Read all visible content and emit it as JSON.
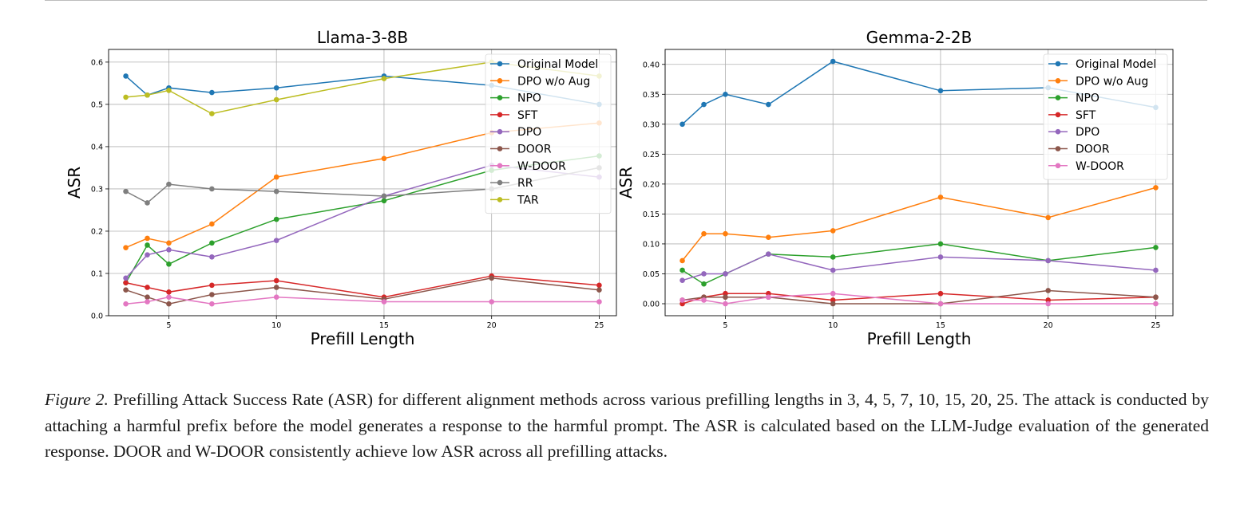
{
  "chart_data": [
    {
      "type": "line",
      "title": "Llama-3-8B",
      "xlabel": "Prefill Length",
      "ylabel": "ASR",
      "x": [
        3,
        4,
        5,
        7,
        10,
        15,
        20,
        25
      ],
      "xticks": [
        5,
        10,
        15,
        20,
        25
      ],
      "xticklabels": [
        "5",
        "10",
        "15",
        "20",
        "25"
      ],
      "xlim": [
        2.2,
        25.8
      ],
      "ylim": [
        0,
        0.63
      ],
      "yticks": [
        0,
        0.1,
        0.2,
        0.3,
        0.4,
        0.5,
        0.6
      ],
      "yticklabels": [
        "0.0",
        "0.1",
        "0.2",
        "0.3",
        "0.4",
        "0.5",
        "0.6"
      ],
      "grid": true,
      "legend": "top-right",
      "series": [
        {
          "name": "Original Model",
          "color": "#1f77b4",
          "values": [
            0.567,
            0.522,
            0.539,
            0.528,
            0.539,
            0.567,
            0.545,
            0.5
          ]
        },
        {
          "name": "DPO w/o Aug",
          "color": "#ff7f0e",
          "values": [
            0.161,
            0.183,
            0.172,
            0.217,
            0.328,
            0.372,
            0.433,
            0.456
          ]
        },
        {
          "name": "NPO",
          "color": "#2ca02c",
          "values": [
            0.078,
            0.167,
            0.122,
            0.172,
            0.228,
            0.272,
            0.344,
            0.378
          ]
        },
        {
          "name": "SFT",
          "color": "#d62728",
          "values": [
            0.078,
            0.067,
            0.056,
            0.072,
            0.083,
            0.044,
            0.094,
            0.072
          ]
        },
        {
          "name": "DPO",
          "color": "#9467bd",
          "values": [
            0.089,
            0.144,
            0.156,
            0.139,
            0.178,
            0.283,
            0.356,
            0.328
          ]
        },
        {
          "name": "DOOR",
          "color": "#8c564b",
          "values": [
            0.061,
            0.044,
            0.028,
            0.05,
            0.067,
            0.039,
            0.089,
            0.061
          ]
        },
        {
          "name": "W-DOOR",
          "color": "#e377c2",
          "values": [
            0.028,
            0.033,
            0.044,
            0.028,
            0.044,
            0.033,
            0.033,
            0.033
          ]
        },
        {
          "name": "RR",
          "color": "#7f7f7f",
          "values": [
            0.294,
            0.267,
            0.311,
            0.3,
            0.294,
            0.283,
            0.3,
            0.35
          ]
        },
        {
          "name": "TAR",
          "color": "#bcbd22",
          "values": [
            0.517,
            0.522,
            0.533,
            0.478,
            0.511,
            0.561,
            0.6,
            0.567
          ]
        }
      ]
    },
    {
      "type": "line",
      "title": "Gemma-2-2B",
      "xlabel": "Prefill Length",
      "ylabel": "ASR",
      "x": [
        3,
        4,
        5,
        7,
        10,
        15,
        20,
        25
      ],
      "xticks": [
        5,
        10,
        15,
        20,
        25
      ],
      "xticklabels": [
        "5",
        "10",
        "15",
        "20",
        "25"
      ],
      "xlim": [
        2.2,
        25.8
      ],
      "ylim": [
        -0.02,
        0.425
      ],
      "yticks": [
        0,
        0.05,
        0.1,
        0.15,
        0.2,
        0.25,
        0.3,
        0.35,
        0.4
      ],
      "yticklabels": [
        "0.00",
        "0.05",
        "0.10",
        "0.15",
        "0.20",
        "0.25",
        "0.30",
        "0.35",
        "0.40"
      ],
      "grid": true,
      "legend": "top-right",
      "series": [
        {
          "name": "Original Model",
          "color": "#1f77b4",
          "values": [
            0.3,
            0.333,
            0.35,
            0.333,
            0.405,
            0.356,
            0.361,
            0.328
          ]
        },
        {
          "name": "DPO w/o Aug",
          "color": "#ff7f0e",
          "values": [
            0.072,
            0.117,
            0.117,
            0.111,
            0.122,
            0.178,
            0.144,
            0.194
          ]
        },
        {
          "name": "NPO",
          "color": "#2ca02c",
          "values": [
            0.056,
            0.033,
            0.05,
            0.083,
            0.078,
            0.1,
            0.072,
            0.094
          ]
        },
        {
          "name": "SFT",
          "color": "#d62728",
          "values": [
            0.0,
            0.011,
            0.017,
            0.017,
            0.006,
            0.017,
            0.006,
            0.011
          ]
        },
        {
          "name": "DPO",
          "color": "#9467bd",
          "values": [
            0.039,
            0.05,
            0.05,
            0.083,
            0.056,
            0.078,
            0.072,
            0.056
          ]
        },
        {
          "name": "DOOR",
          "color": "#8c564b",
          "values": [
            0.006,
            0.011,
            0.011,
            0.011,
            0.0,
            0.0,
            0.022,
            0.011
          ]
        },
        {
          "name": "W-DOOR",
          "color": "#e377c2",
          "values": [
            0.006,
            0.006,
            0.0,
            0.011,
            0.017,
            0.0,
            0.0,
            0.0
          ]
        }
      ]
    }
  ],
  "caption": {
    "label": "Figure 2.",
    "text": "Prefilling Attack Success Rate (ASR) for different alignment methods across various prefilling lengths in 3, 4, 5, 7, 10, 15, 20, 25. The attack is conducted by attaching a harmful prefix before the model generates a response to the harmful prompt. The ASR is calculated based on the LLM-Judge evaluation of the generated response. DOOR and W-DOOR consistently achieve low ASR across all prefilling attacks."
  }
}
